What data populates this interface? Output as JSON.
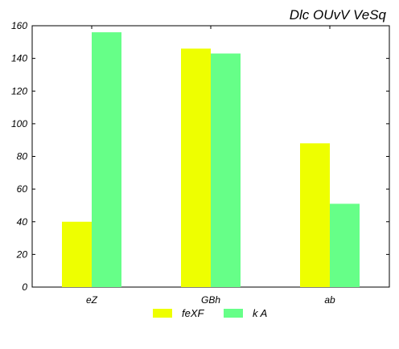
{
  "chart_data": {
    "type": "bar",
    "title": "Dlc OUvV VeSq",
    "xlabel": "",
    "ylabel": "",
    "categories": [
      "eZ",
      "GBh",
      "ab"
    ],
    "series": [
      {
        "name": "feXF",
        "values": [
          40,
          146,
          88
        ],
        "color": "#eeff00"
      },
      {
        "name": "k A",
        "values": [
          156,
          143,
          51
        ],
        "color": "#66ff88"
      }
    ],
    "ylim": [
      0,
      160
    ],
    "yticks": [
      0,
      20,
      40,
      60,
      80,
      100,
      120,
      140,
      160
    ],
    "grid": false,
    "legend": "bottom-center"
  }
}
